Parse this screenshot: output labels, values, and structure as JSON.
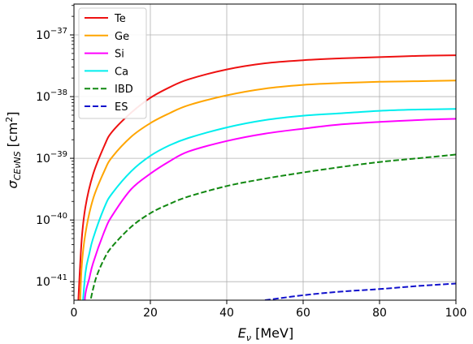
{
  "chart_data": {
    "type": "line",
    "xlabel": "E",
    "xlabel_sub": "ν",
    "xlabel_unit": " [MeV]",
    "ylabel": "σ",
    "ylabel_sub": "CEνNS",
    "ylabel_unit": " [cm",
    "ylabel_unit_sup": "2",
    "ylabel_close": "]",
    "xlim": [
      0,
      100
    ],
    "ylim_log10": [
      -41.3,
      -36.5
    ],
    "y_scale": "log",
    "grid": true,
    "legend_position": "top-left",
    "x_ticks": [
      0,
      20,
      40,
      60,
      80,
      100
    ],
    "x_tick_labels": [
      "0",
      "20",
      "40",
      "60",
      "80",
      "100"
    ],
    "y_ticks_log10": [
      -41,
      -40,
      -39,
      -38,
      -37
    ],
    "y_tick_base": "10",
    "y_tick_exponents": [
      "−41",
      "−40",
      "−39",
      "−38",
      "−37"
    ],
    "series": [
      {
        "name": "Te",
        "color": "#ee1111",
        "dash": "solid",
        "x": [
          1,
          2,
          3,
          5,
          8,
          10,
          15,
          20,
          25,
          30,
          40,
          50,
          60,
          70,
          80,
          90,
          100
        ],
        "log10_y": [
          -41.48,
          -40.34,
          -39.79,
          -39.26,
          -38.79,
          -38.57,
          -38.26,
          -38.02,
          -37.85,
          -37.72,
          -37.56,
          -37.46,
          -37.41,
          -37.38,
          -37.36,
          -37.34,
          -37.33
        ]
      },
      {
        "name": "Ge",
        "color": "#ffa500",
        "dash": "solid",
        "x": [
          1.5,
          2,
          3,
          5,
          8,
          10,
          15,
          20,
          25,
          30,
          40,
          50,
          60,
          70,
          80,
          90,
          100
        ],
        "log10_y": [
          -41.6,
          -40.78,
          -40.22,
          -39.66,
          -39.2,
          -38.98,
          -38.65,
          -38.43,
          -38.27,
          -38.14,
          -37.98,
          -37.87,
          -37.81,
          -37.78,
          -37.76,
          -37.75,
          -37.74
        ]
      },
      {
        "name": "Si",
        "color": "#ff00ff",
        "dash": "solid",
        "x": [
          2.5,
          3,
          4,
          5,
          8,
          10,
          15,
          20,
          25,
          30,
          40,
          50,
          60,
          70,
          80,
          90,
          100
        ],
        "log10_y": [
          -41.6,
          -41.2,
          -40.95,
          -40.7,
          -40.18,
          -39.93,
          -39.5,
          -39.25,
          -39.05,
          -38.89,
          -38.72,
          -38.6,
          -38.52,
          -38.45,
          -38.41,
          -38.38,
          -38.36
        ]
      },
      {
        "name": "Ca",
        "color": "#00eeee",
        "dash": "solid",
        "x": [
          2,
          3,
          4,
          5,
          8,
          10,
          15,
          20,
          25,
          30,
          40,
          50,
          60,
          70,
          80,
          90,
          100
        ],
        "log10_y": [
          -41.6,
          -40.86,
          -40.55,
          -40.3,
          -39.79,
          -39.57,
          -39.21,
          -38.96,
          -38.79,
          -38.67,
          -38.5,
          -38.38,
          -38.31,
          -38.27,
          -38.23,
          -38.21,
          -38.2
        ]
      },
      {
        "name": "IBD",
        "color": "#118811",
        "dash": "dashed",
        "x": [
          4,
          5,
          6,
          8,
          10,
          15,
          20,
          25,
          30,
          40,
          50,
          60,
          70,
          80,
          90,
          100
        ],
        "log10_y": [
          -41.4,
          -41.12,
          -40.9,
          -40.62,
          -40.43,
          -40.11,
          -39.89,
          -39.74,
          -39.62,
          -39.45,
          -39.33,
          -39.23,
          -39.14,
          -39.06,
          -39.0,
          -38.94
        ]
      },
      {
        "name": "ES",
        "color": "#1111cc",
        "dash": "dashed",
        "x": [
          50,
          60,
          70,
          80,
          90,
          100
        ],
        "log10_y": [
          -41.3,
          -41.22,
          -41.16,
          -41.12,
          -41.07,
          -41.03
        ]
      }
    ]
  }
}
